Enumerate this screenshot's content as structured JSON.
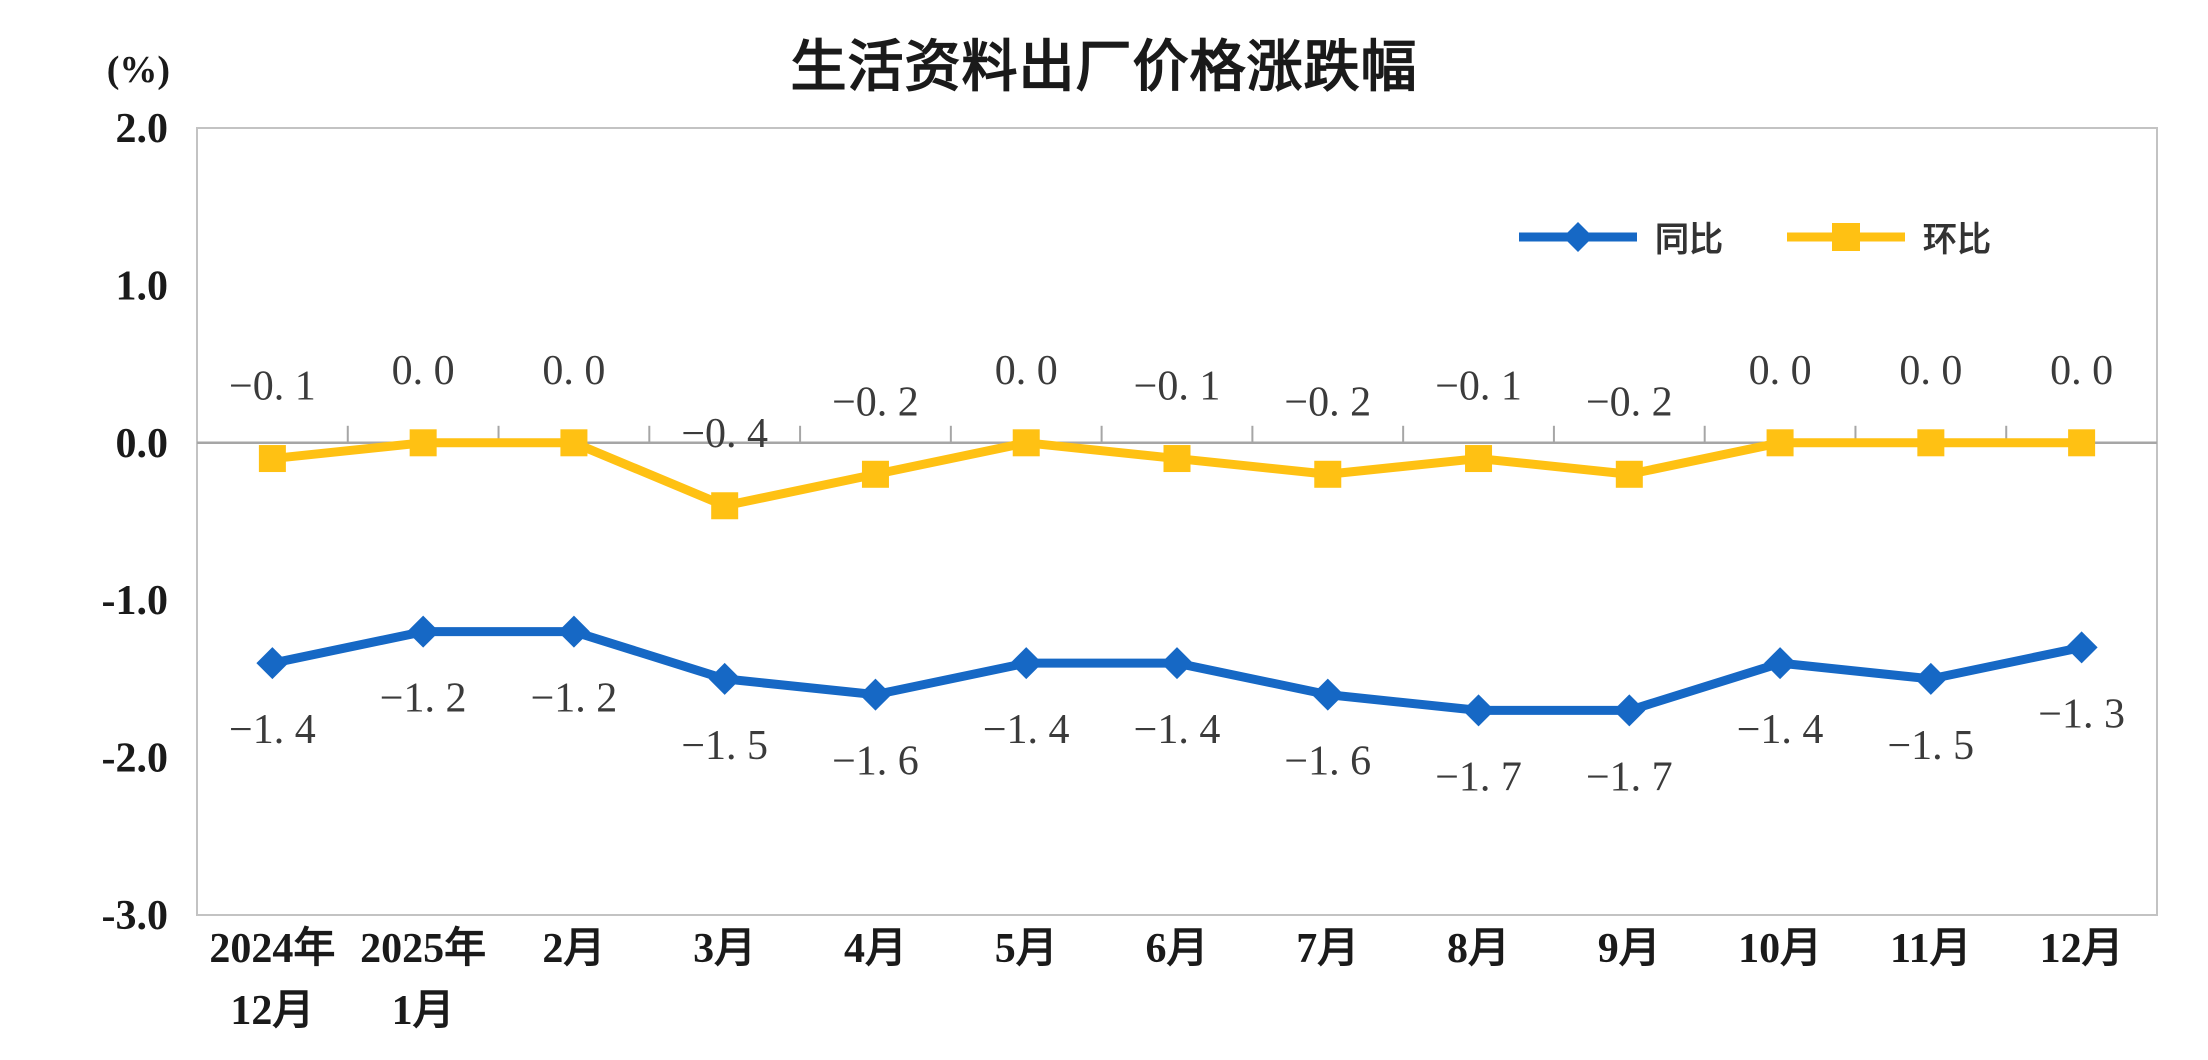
{
  "chart": {
    "title": "生活资料出厂价格涨跌幅",
    "unit_label": "(%)",
    "colors": {
      "tongbi_blue": "#1668c5",
      "huanbi_yellow": "#ffc113",
      "zero_axis": "#a6a6a6",
      "plot_border": "#c3c3c3",
      "data_label": "#3b3b3b",
      "tick_label": "#1a1a1a"
    }
  },
  "legend": {
    "items": [
      {
        "name": "tongbi",
        "label": "同比",
        "marker": "diamond",
        "color": "#1668c5"
      },
      {
        "name": "huanbi",
        "label": "环比",
        "marker": "square",
        "color": "#ffc113"
      }
    ]
  },
  "chart_data": {
    "type": "line",
    "title": "生活资料出厂价格涨跌幅",
    "ylabel": "(%)",
    "ylim": [
      -3.0,
      2.0
    ],
    "grid": false,
    "legend_position": "top-right",
    "categories": [
      "2024年12月",
      "2025年1月",
      "2月",
      "3月",
      "4月",
      "5月",
      "6月",
      "7月",
      "8月",
      "9月",
      "10月",
      "11月",
      "12月"
    ],
    "x_labels": [
      [
        "2024年",
        "12月"
      ],
      [
        "2025年",
        "1月"
      ],
      [
        "2月"
      ],
      [
        "3月"
      ],
      [
        "4月"
      ],
      [
        "5月"
      ],
      [
        "6月"
      ],
      [
        "7月"
      ],
      [
        "8月"
      ],
      [
        "9月"
      ],
      [
        "10月"
      ],
      [
        "11月"
      ],
      [
        "12月"
      ]
    ],
    "y_ticks": [
      {
        "v": 2,
        "label": "2.0"
      },
      {
        "v": 1,
        "label": "1.0"
      },
      {
        "v": 0,
        "label": "0.0"
      },
      {
        "v": -1,
        "label": "-1.0"
      },
      {
        "v": -2,
        "label": "-2.0"
      },
      {
        "v": -3,
        "label": "-3.0"
      }
    ],
    "series": [
      {
        "name": "同比",
        "color": "#1668c5",
        "marker": "diamond",
        "label_side": "below",
        "values": [
          -1.4,
          -1.2,
          -1.2,
          -1.5,
          -1.6,
          -1.4,
          -1.4,
          -1.6,
          -1.7,
          -1.7,
          -1.4,
          -1.5,
          -1.3
        ],
        "labels": [
          "−1. 4",
          "−1. 2",
          "−1. 2",
          "−1. 5",
          "−1. 6",
          "−1. 4",
          "−1. 4",
          "−1. 6",
          "−1. 7",
          "−1. 7",
          "−1. 4",
          "−1. 5",
          "−1. 3"
        ]
      },
      {
        "name": "环比",
        "color": "#ffc113",
        "marker": "square",
        "label_side": "above",
        "values": [
          -0.1,
          0.0,
          0.0,
          -0.4,
          -0.2,
          0.0,
          -0.1,
          -0.2,
          -0.1,
          -0.2,
          0.0,
          0.0,
          0.0
        ],
        "labels": [
          "−0. 1",
          "0. 0",
          "0. 0",
          "−0. 4",
          "−0. 2",
          "0. 0",
          "−0. 1",
          "−0. 2",
          "−0. 1",
          "−0. 2",
          "0. 0",
          "0. 0",
          "0. 0"
        ]
      }
    ]
  }
}
